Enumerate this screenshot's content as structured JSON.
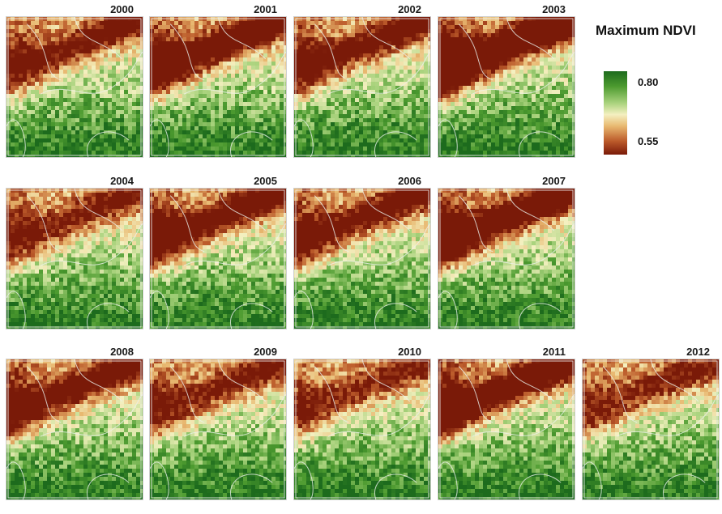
{
  "legend": {
    "title": "Maximum NDVI",
    "high_label": "0.80",
    "low_label": "0.55",
    "high_value": 0.8,
    "low_value": 0.55,
    "colors": [
      "#1d6b1d",
      "#4c9a2f",
      "#a8d27c",
      "#f4f0c0",
      "#e8b870",
      "#bb5a2a",
      "#7a1a08"
    ]
  },
  "panels": [
    {
      "year": "2000"
    },
    {
      "year": "2001"
    },
    {
      "year": "2002"
    },
    {
      "year": "2003"
    },
    {
      "year": "2004"
    },
    {
      "year": "2005"
    },
    {
      "year": "2006"
    },
    {
      "year": "2007"
    },
    {
      "year": "2008"
    },
    {
      "year": "2009"
    },
    {
      "year": "2010"
    },
    {
      "year": "2011"
    },
    {
      "year": "2012"
    }
  ]
}
